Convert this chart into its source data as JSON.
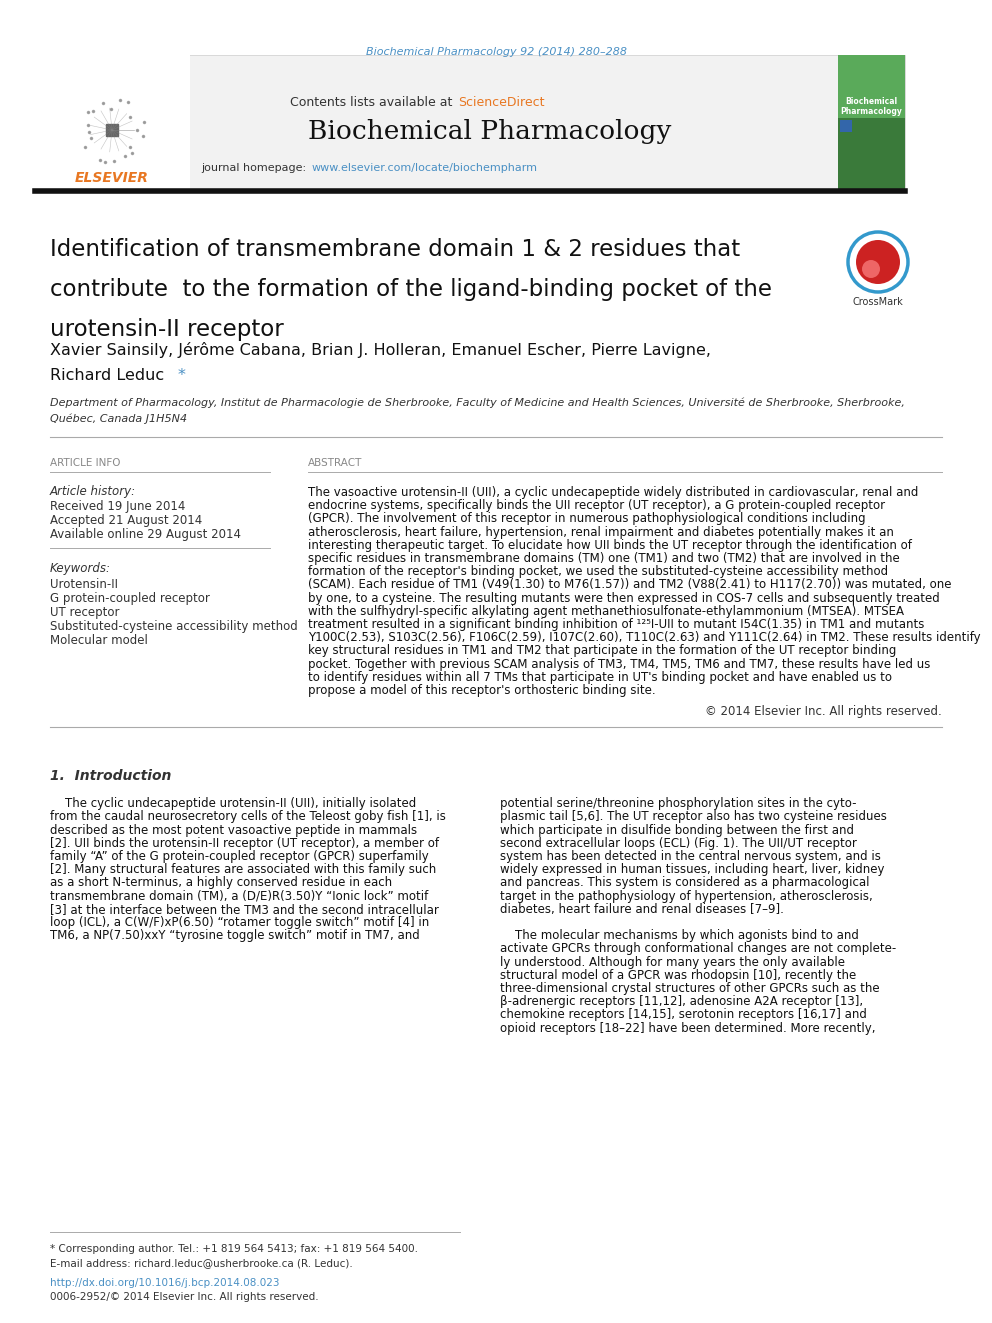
{
  "background_color": "#ffffff",
  "journal_ref": "Biochemical Pharmacology 92 (2014) 280–288",
  "journal_ref_color": "#4a90c4",
  "header_bg": "#f0f0f0",
  "header_text": "Contents lists available at",
  "sciencedirect": "ScienceDirect",
  "sciencedirect_color": "#e87722",
  "journal_name": "Biochemical Pharmacology",
  "journal_homepage_label": "journal homepage:",
  "journal_url": "www.elsevier.com/locate/biochempharm",
  "journal_url_color": "#4a90c4",
  "title_line1": "Identification of transmembrane domain 1 & 2 residues that",
  "title_line2": "contribute  to the formation of the ligand-binding pocket of the",
  "title_line3": "urotensin-II receptor",
  "authors": "Xavier Sainsily, Jérôme Cabana, Brian J. Holleran, Emanuel Escher, Pierre Lavigne,",
  "authors2": "Richard Leduc *",
  "affiliation": "Department of Pharmacology, Institut de Pharmacologie de Sherbrooke, Faculty of Medicine and Health Sciences, Université de Sherbrooke, Sherbrooke,",
  "affiliation2": "Québec, Canada J1H5N4",
  "article_info_header": "ARTICLE INFO",
  "abstract_header": "ABSTRACT",
  "article_history_label": "Article history:",
  "received": "Received 19 June 2014",
  "accepted": "Accepted 21 August 2014",
  "available": "Available online 29 August 2014",
  "keywords_label": "Keywords:",
  "keywords": [
    "Urotensin-II",
    "G protein-coupled receptor",
    "UT receptor",
    "Substituted-cysteine accessibility method",
    "Molecular model"
  ],
  "abstract_lines": [
    "The vasoactive urotensin-II (UII), a cyclic undecapeptide widely distributed in cardiovascular, renal and",
    "endocrine systems, specifically binds the UII receptor (UT receptor), a G protein-coupled receptor",
    "(GPCR). The involvement of this receptor in numerous pathophysiological conditions including",
    "atherosclerosis, heart failure, hypertension, renal impairment and diabetes potentially makes it an",
    "interesting therapeutic target. To elucidate how UII binds the UT receptor through the identification of",
    "specific residues in transmembrane domains (TM) one (TM1) and two (TM2) that are involved in the",
    "formation of the receptor's binding pocket, we used the substituted-cysteine accessibility method",
    "(SCAM). Each residue of TM1 (V49(1.30) to M76(1.57)) and TM2 (V88(2.41) to H117(2.70)) was mutated, one",
    "by one, to a cysteine. The resulting mutants were then expressed in COS-7 cells and subsequently treated",
    "with the sulfhydryl-specific alkylating agent methanethiosulfonate-ethylammonium (MTSEA). MTSEA",
    "treatment resulted in a significant binding inhibition of ¹²⁵I-UII to mutant I54C(1.35) in TM1 and mutants",
    "Y100C(2.53), S103C(2.56), F106C(2.59), I107C(2.60), T110C(2.63) and Y111C(2.64) in TM2. These results identify",
    "key structural residues in TM1 and TM2 that participate in the formation of the UT receptor binding",
    "pocket. Together with previous SCAM analysis of TM3, TM4, TM5, TM6 and TM7, these results have led us",
    "to identify residues within all 7 TMs that participate in UT's binding pocket and have enabled us to",
    "propose a model of this receptor's orthosteric binding site."
  ],
  "copyright": "© 2014 Elsevier Inc. All rights reserved.",
  "section1_header": "1.  Introduction",
  "intro_left_lines": [
    "    The cyclic undecapeptide urotensin-II (UII), initially isolated",
    "from the caudal neurosecretory cells of the Teleost goby fish [1], is",
    "described as the most potent vasoactive peptide in mammals",
    "[2]. UII binds the urotensin-II receptor (UT receptor), a member of",
    "family “A” of the G protein-coupled receptor (GPCR) superfamily",
    "[2]. Many structural features are associated with this family such",
    "as a short N-terminus, a highly conserved residue in each",
    "transmembrane domain (TM), a (D/E)R(3.50)Y “Ionic lock” motif",
    "[3] at the interface between the TM3 and the second intracellular",
    "loop (ICL), a C(W/F)xP(6.50) “rotamer toggle switch” motif [4] in",
    "TM6, a NP(7.50)xxY “tyrosine toggle switch” motif in TM7, and"
  ],
  "intro_right_lines": [
    "potential serine/threonine phosphorylation sites in the cyto-",
    "plasmic tail [5,6]. The UT receptor also has two cysteine residues",
    "which participate in disulfide bonding between the first and",
    "second extracellular loops (ECL) (Fig. 1). The UII/UT receptor",
    "system has been detected in the central nervous system, and is",
    "widely expressed in human tissues, including heart, liver, kidney",
    "and pancreas. This system is considered as a pharmacological",
    "target in the pathophysiology of hypertension, atherosclerosis,",
    "diabetes, heart failure and renal diseases [7–9].",
    "",
    "    The molecular mechanisms by which agonists bind to and",
    "activate GPCRs through conformational changes are not complete-",
    "ly understood. Although for many years the only available",
    "structural model of a GPCR was rhodopsin [10], recently the",
    "three-dimensional crystal structures of other GPCRs such as the",
    "β-adrenergic receptors [11,12], adenosine A2A receptor [13],",
    "chemokine receptors [14,15], serotonin receptors [16,17] and",
    "opioid receptors [18–22] have been determined. More recently,"
  ],
  "footnote1": "* Corresponding author. Tel.: +1 819 564 5413; fax: +1 819 564 5400.",
  "footnote2": "E-mail address: richard.leduc@usherbrooke.ca (R. Leduc).",
  "doi": "http://dx.doi.org/10.1016/j.bcp.2014.08.023",
  "issn": "0006-2952/© 2014 Elsevier Inc. All rights reserved."
}
